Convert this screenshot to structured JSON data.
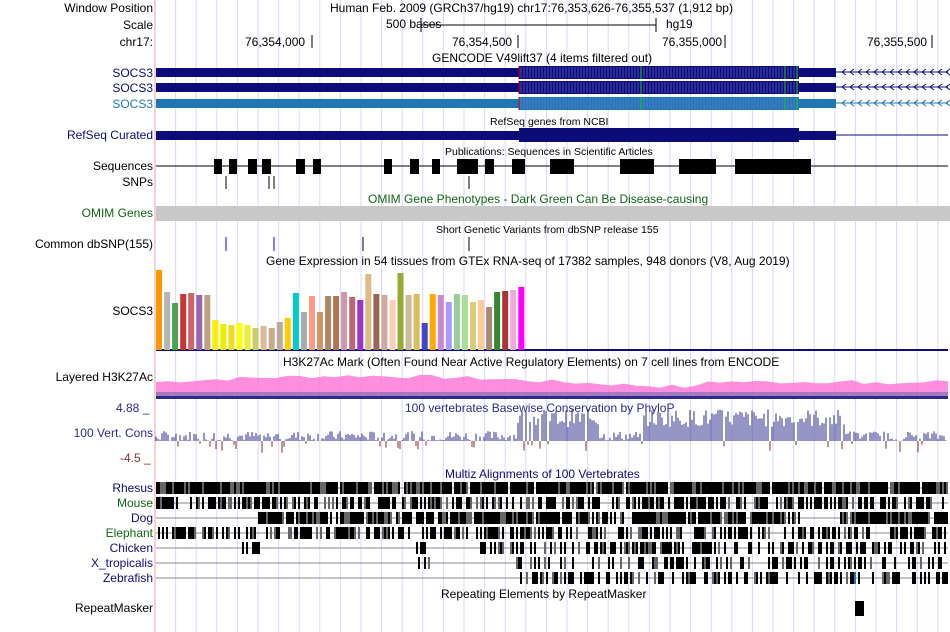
{
  "header": {
    "window_position_label": "Window Position",
    "position_text": "Human Feb. 2009 (GRCh37/hg19)   chr17:76,353,626-76,355,537 (1,912 bp)",
    "scale_label": "Scale",
    "scale_bar_text": "500 bases",
    "assembly": "hg19",
    "chrom_label": "chr17:",
    "ruler_ticks": [
      "76,354,000",
      "76,354,500",
      "76,355,000",
      "76,355,500"
    ]
  },
  "tracks": {
    "gencode": {
      "title": "GENCODE V49lift37 (4 items filtered out)",
      "items": [
        "SOCS3",
        "SOCS3",
        "SOCS3"
      ]
    },
    "refseq": {
      "title": "RefSeq genes from NCBI",
      "label": "RefSeq Curated"
    },
    "publications": {
      "title": "Publications: Sequences in Scientific Articles",
      "label": "Sequences"
    },
    "snps": {
      "label": "SNPs"
    },
    "omim": {
      "title": "OMIM Gene Phenotypes - Dark Green Can Be Disease-causing",
      "label": "OMIM Genes"
    },
    "dbsnp": {
      "title": "Short Genetic Variants from dbSNP release 155",
      "label": "Common dbSNP(155)"
    },
    "gtex": {
      "title": "Gene Expression in 54 tissues from GTEx RNA-seq of 17382 samples, 948 donors (V8, Aug 2019)",
      "label": "SOCS3"
    },
    "h3k27ac": {
      "title": "H3K27Ac Mark (Often Found Near Active Regulatory Elements) on 7 cell lines from ENCODE",
      "label": "Layered H3K27Ac"
    },
    "conservation": {
      "title": "100 vertebrates Basewise Conservation by PhyloP",
      "label": "100 Vert. Cons",
      "max_label": "4.88 _",
      "min_label": "-4.5 _"
    },
    "multiz": {
      "title": "Multiz Alignments of 100 Vertebrates",
      "species": [
        "Rhesus",
        "Mouse",
        "Dog",
        "Elephant",
        "Chicken",
        "X_tropicalis",
        "Zebrafish"
      ]
    },
    "repeatmasker": {
      "title": "Repeating Elements by RepeatMasker",
      "label": "RepeatMasker"
    }
  },
  "colors": {
    "gene_dark": "#0c0c78",
    "gene_light": "#1f77b4",
    "label_blue": "#0c0c78",
    "omim_green": "#146414",
    "cons_blue": "#2b2b8b",
    "cons_red": "#8b2b2b",
    "h3k27ac_pink": "#ff7ad8",
    "guideline": "#d8d8ff",
    "left_border": "#f0a0a0"
  },
  "gtex_bar_colors": [
    "#ff9900",
    "#b5b5b5",
    "#4aa54a",
    "#cc3333",
    "#cc6666",
    "#9966aa",
    "#bfa080",
    "#ffee00",
    "#eeee00",
    "#eedd22",
    "#ffff00",
    "#eeee33",
    "#cccc66",
    "#ddbb99",
    "#ccaa88",
    "#bbaa99",
    "#ffcc00",
    "#00cccc",
    "#aaaaaa",
    "#ff9988",
    "#cc9966",
    "#aa8866",
    "#aa7755",
    "#cc99aa",
    "#bb6677",
    "#9933cc",
    "#ddbb88",
    "#996655",
    "#ccaa99",
    "#ffccbb",
    "#99aa33",
    "#ccbb99",
    "#ddbb55",
    "#4444cc",
    "#ffaa00",
    "#cc88cc",
    "#aa99ff",
    "#99cc99",
    "#aadd99",
    "#ddcc77",
    "#ffcc99",
    "#aa8877",
    "#338833",
    "#aa3333",
    "#eeaadd",
    "#ff00ff"
  ]
}
